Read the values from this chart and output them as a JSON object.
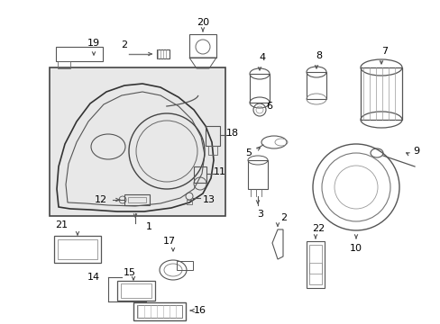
{
  "bg_color": "#ffffff",
  "fig_width": 4.89,
  "fig_height": 3.6,
  "dpi": 100,
  "line_color": "#333333",
  "text_color": "#000000",
  "label_fontsize": 8.0,
  "box_face": "#e8e8e8",
  "box_edge": "#444444"
}
